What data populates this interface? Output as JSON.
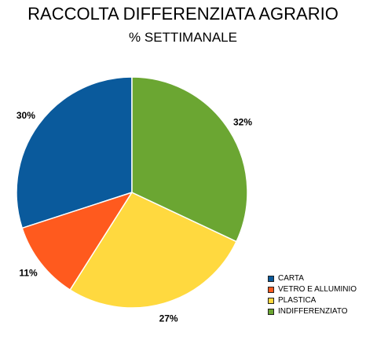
{
  "chart_data": {
    "type": "pie",
    "title": "RACCOLTA DIFFERENZIATA AGRARIO",
    "subtitle": "% SETTIMANALE",
    "slices": [
      {
        "label": "CARTA",
        "value": 30,
        "value_label": "30%",
        "color": "#0a5a9c"
      },
      {
        "label": "VETRO E ALLUMINIO",
        "value": 11,
        "value_label": "11%",
        "color": "#ff5a1e"
      },
      {
        "label": "PLASTICA",
        "value": 27,
        "value_label": "27%",
        "color": "#ffd93f"
      },
      {
        "label": "INDIFFERENZIATO",
        "value": 32,
        "value_label": "32%",
        "color": "#6ba632"
      }
    ],
    "legend_position": "bottom-right",
    "start_angle_deg": 0,
    "direction": "counterclockwise"
  }
}
